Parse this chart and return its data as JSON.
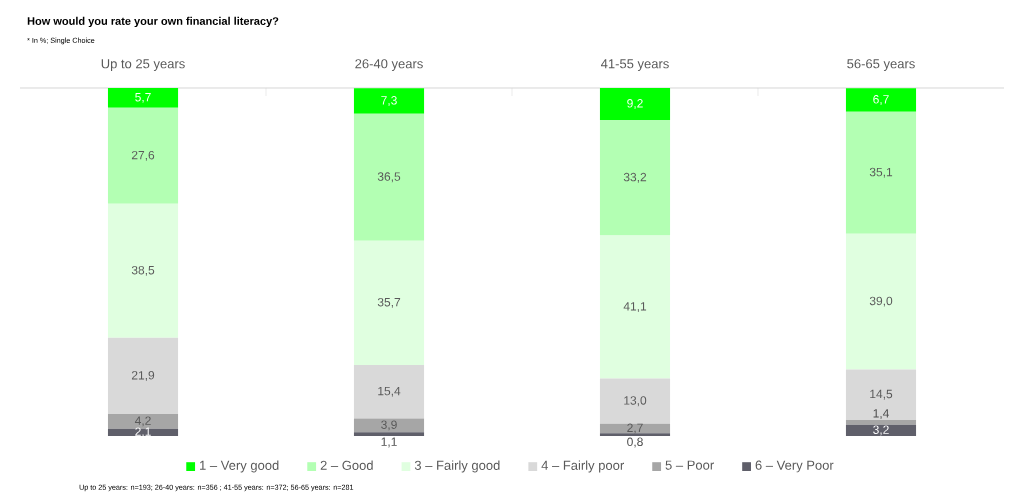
{
  "chart_data": {
    "type": "bar",
    "stacked": true,
    "title": "How would you rate your own financial literacy?",
    "subtitle": "* In %; Single Choice",
    "annotations": [
      "Up to 25 years: n=193; 26-40 years: n=356 ; 41-55 years: n=372; 56-65 years: n=281"
    ],
    "categories": [
      "Up to 25 years",
      "26-40 years",
      "41-55 years",
      "56-65 years"
    ],
    "ylim": [
      0,
      100
    ],
    "tick_labels": "x",
    "legend": "bottom",
    "grid": false,
    "series": [
      {
        "name": "6 – Very Poor",
        "color": "#5f5f6a",
        "values": [
          2.1,
          1.1,
          0.8,
          3.2
        ],
        "value_labels": [
          "2,1",
          "1,1",
          "0,8",
          "3,2"
        ]
      },
      {
        "name": "5 – Poor",
        "color": "#a6a6a6",
        "values": [
          4.2,
          3.9,
          2.7,
          1.4
        ],
        "value_labels": [
          "4,2",
          "3,9",
          "2,7",
          "1,4"
        ]
      },
      {
        "name": "4 – Fairly poor",
        "color": "#d9d9d9",
        "values": [
          21.9,
          15.4,
          13.0,
          14.5
        ],
        "value_labels": [
          "21,9",
          "15,4",
          "13,0",
          "14,5"
        ]
      },
      {
        "name": "3 – Fairly good",
        "color": "#e0ffe0",
        "values": [
          38.5,
          35.7,
          41.1,
          39.0
        ],
        "value_labels": [
          "38,5",
          "35,7",
          "41,1",
          "39,0"
        ]
      },
      {
        "name": "2 – Good",
        "color": "#b3ffb3",
        "values": [
          27.6,
          36.5,
          33.2,
          35.1
        ],
        "value_labels": [
          "27,6",
          "36,5",
          "33,2",
          "35,1"
        ]
      },
      {
        "name": "1 – Very good",
        "color": "#00ff00",
        "values": [
          5.7,
          7.3,
          9.2,
          6.7
        ],
        "value_labels": [
          "5,7",
          "7,3",
          "9,2",
          "6,7"
        ]
      }
    ]
  }
}
